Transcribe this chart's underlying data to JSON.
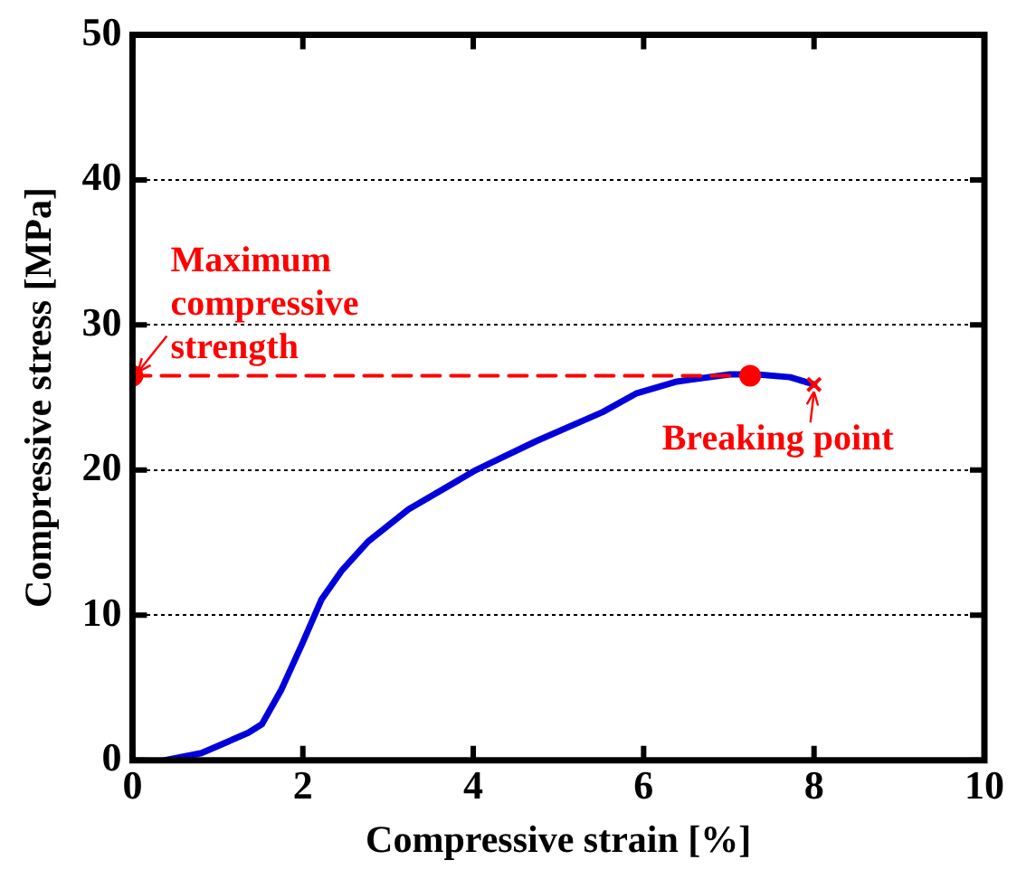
{
  "chart_data": {
    "type": "line",
    "xlabel": "Compressive strain [%]",
    "ylabel": "Compressive stress [MPa]",
    "xlim": [
      0,
      10
    ],
    "xticks": [
      0,
      2,
      4,
      6,
      8,
      10
    ],
    "ylim": [
      0,
      50
    ],
    "yticks": [
      0,
      10,
      20,
      30,
      40,
      50
    ],
    "grid": "y",
    "legend": false,
    "series": [
      {
        "type": "line",
        "color": "#0000dd",
        "marker": "none",
        "line_style": "solid",
        "x": [
          0.38,
          0.81,
          1.36,
          1.52,
          1.75,
          1.99,
          2.22,
          2.46,
          2.77,
          3.24,
          4.03,
          4.74,
          5.52,
          5.92,
          6.39,
          7.01,
          7.33,
          7.72,
          8.0
        ],
        "values": [
          0,
          0.5,
          1.9,
          2.5,
          4.9,
          8.0,
          11.1,
          13.1,
          15.1,
          17.3,
          20.0,
          22.0,
          24.0,
          25.3,
          26.1,
          26.6,
          26.6,
          26.4,
          25.9
        ]
      },
      {
        "type": "line",
        "color": "#ff0000",
        "marker": "circle",
        "line_style": "dashed",
        "x": [
          0,
          7.25
        ],
        "values": [
          26.5,
          26.5
        ]
      },
      {
        "type": "scatter",
        "color": "#ff0000",
        "marker": "cross",
        "x": [
          8.0
        ],
        "values": [
          25.9
        ]
      }
    ],
    "annotations": [
      {
        "text": "Maximum compressive strength",
        "x": 0,
        "y": 26.5
      },
      {
        "text": "Breaking point",
        "x": 8.0,
        "y": 25.9
      }
    ]
  }
}
